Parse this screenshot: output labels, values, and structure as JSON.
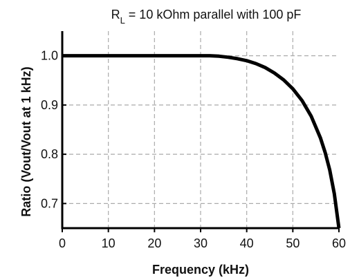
{
  "chart_data": {
    "type": "line",
    "title": {
      "main": "R",
      "subscript": "L",
      "rest": " = 10 kOhm parallel with 100 pF"
    },
    "xlabel": "Frequency (kHz)",
    "ylabel": "Ratio (Vout/Vout at 1 kHz)",
    "xlim": [
      0,
      60
    ],
    "ylim": [
      0.65,
      1.05
    ],
    "x_ticks": [
      0,
      10,
      20,
      30,
      40,
      50,
      60
    ],
    "x_tick_labels": [
      "0",
      "10",
      "20",
      "30",
      "40",
      "50",
      "60"
    ],
    "y_ticks": [
      0.7,
      0.8,
      0.9,
      1.0
    ],
    "y_tick_labels": [
      "0.7",
      "0.8",
      "0.9",
      "1.0"
    ],
    "grid": true,
    "series": [
      {
        "x": [
          0,
          10,
          20,
          28,
          30,
          32,
          34,
          36,
          38,
          40,
          42,
          44,
          46,
          48,
          50,
          52,
          54,
          56,
          57,
          58,
          59,
          60
        ],
        "y": [
          1.0,
          1.0,
          1.0,
          1.0,
          1.0,
          1.0,
          0.999,
          0.997,
          0.994,
          0.99,
          0.984,
          0.976,
          0.965,
          0.951,
          0.933,
          0.909,
          0.877,
          0.833,
          0.804,
          0.768,
          0.72,
          0.65
        ]
      }
    ],
    "colors": {
      "line": "#000000",
      "grid": "#aaaaaa",
      "axes": "#000000"
    }
  }
}
